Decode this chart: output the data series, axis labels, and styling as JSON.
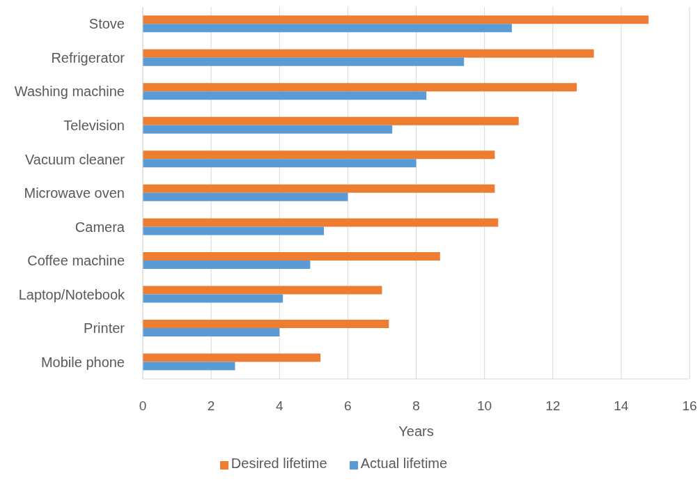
{
  "chart_data": {
    "type": "bar",
    "orientation": "horizontal",
    "xlabel": "Years",
    "categories": [
      "Stove",
      "Refrigerator",
      "Washing machine",
      "Television",
      "Vacuum cleaner",
      "Microwave oven",
      "Camera",
      "Coffee machine",
      "Laptop/Notebook",
      "Printer",
      "Mobile phone"
    ],
    "series": [
      {
        "name": "Desired lifetime",
        "color": "#ed7d31",
        "values": [
          14.8,
          13.2,
          12.7,
          11.0,
          10.3,
          10.3,
          10.4,
          8.7,
          7.0,
          7.2,
          5.2
        ]
      },
      {
        "name": "Actual lifetime",
        "color": "#5b9bd5",
        "values": [
          10.8,
          9.4,
          8.3,
          7.3,
          8.0,
          6.0,
          5.3,
          4.9,
          4.1,
          4.0,
          2.7
        ]
      }
    ],
    "xlim": [
      0,
      16
    ],
    "xticks": [
      0,
      2,
      4,
      6,
      8,
      10,
      12,
      14,
      16
    ],
    "grid": "x",
    "legend": "bottom"
  }
}
